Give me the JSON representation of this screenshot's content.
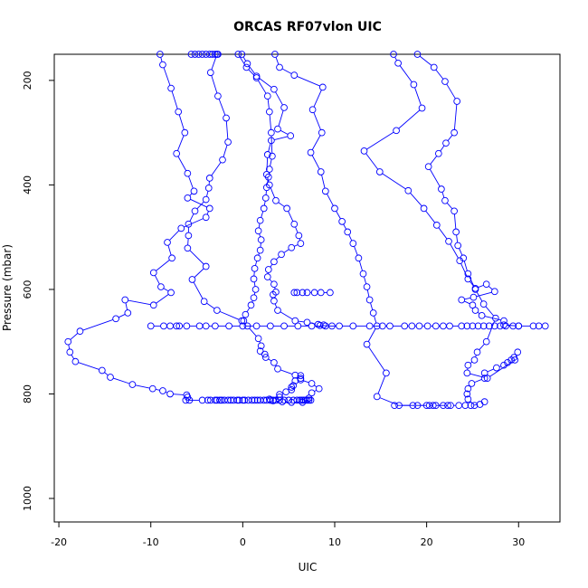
{
  "chart_data": {
    "type": "line",
    "title": "ORCAS RF07vlon UIC",
    "xlabel": "UIC",
    "ylabel": "Pressure (mbar)",
    "xlim": [
      -20.5,
      34.5
    ],
    "ylim": [
      1045,
      150
    ],
    "y_inverted": true,
    "x_ticks": [
      -20,
      -10,
      0,
      10,
      20,
      30
    ],
    "x_tick_labels": [
      "-20",
      "-10",
      "0",
      "10",
      "20",
      "30"
    ],
    "y_ticks": [
      200,
      400,
      600,
      800,
      1000
    ],
    "y_tick_labels": [
      "200",
      "400",
      "600",
      "800",
      "1000"
    ],
    "grid": false,
    "legend": "none",
    "color": "#0000ff",
    "marker": "open-circle",
    "series": [
      {
        "x": [
          -9,
          -8.7,
          -7.8,
          -7,
          -6.3,
          -7.2,
          -6,
          -5.3,
          -6,
          -3.6,
          -4,
          -6.7,
          -8.2,
          -7.7,
          -9.7,
          -8.9,
          -7.8,
          -9.7,
          -12.8,
          -12.5,
          -13.8,
          -17.7,
          -19,
          -18.8,
          -18.2,
          -15.3,
          -14.4,
          -12,
          -9.8,
          -8.7,
          -7.9,
          -6.1,
          -6,
          -5.8
        ],
        "y": [
          150,
          170,
          215,
          260,
          300,
          340,
          378,
          412,
          425,
          445,
          462,
          483,
          510,
          540,
          568,
          595,
          606,
          630,
          620,
          645,
          656,
          680,
          700,
          720,
          738,
          755,
          768,
          782,
          790,
          794,
          800,
          802,
          806,
          812
        ]
      },
      {
        "x": [
          -2.8,
          -3.5,
          -2.7,
          -1.8,
          -1.6,
          -2.2,
          -3.6,
          -3.7,
          -4,
          -5.2,
          -5.9,
          -5.9,
          -6,
          -4,
          -5.5,
          -4.2,
          -2.8,
          -0.1,
          0.5,
          1.7,
          2,
          1.9,
          2.4,
          2.5,
          3.4,
          3.8,
          5.7,
          6.3,
          7.5,
          8.3,
          7.5,
          7.2,
          7.4,
          6.5,
          5.3,
          4.3,
          3.3,
          3,
          2.9,
          4,
          4,
          4.7,
          5.3,
          5.3,
          5.5,
          5.7,
          6.3,
          6.3
        ],
        "y": [
          150,
          185,
          230,
          272,
          318,
          352,
          387,
          406,
          428,
          450,
          475,
          497,
          521,
          556,
          581,
          623,
          640,
          660,
          670,
          694,
          708,
          718,
          724,
          730,
          740,
          752,
          764,
          773,
          780,
          790,
          798,
          808,
          812,
          816,
          816,
          815,
          813,
          812,
          810,
          806,
          801,
          796,
          792,
          787,
          784,
          775,
          770,
          765
        ]
      },
      {
        "x": [
          -0.5,
          0.4,
          1.5,
          2.7,
          2.9,
          3.1,
          3.2,
          2.9,
          2.8,
          2.6,
          2.5,
          2.3,
          1.9,
          1.7,
          2,
          1.9,
          1.6,
          1.3,
          1.2,
          1.4,
          1.2,
          0.9,
          0.3,
          0.1
        ],
        "y": [
          150,
          175,
          195,
          230,
          260,
          300,
          345,
          370,
          385,
          405,
          425,
          445,
          468,
          488,
          505,
          525,
          540,
          560,
          580,
          600,
          616,
          630,
          648,
          660
        ]
      },
      {
        "x": [
          -0.1,
          0.5,
          1.5,
          3.4,
          4.5,
          3.8,
          5.2,
          3.1,
          2.7,
          2.6,
          2.9,
          3.6,
          4.8,
          5.6,
          6.1,
          6.3,
          5.3,
          4.2,
          3.4,
          2.8,
          2.7,
          3.4,
          3.6,
          3.3,
          3.4,
          3.8,
          5.7,
          7,
          8.2,
          8.8,
          8.4,
          9.7
        ],
        "y": [
          150,
          168,
          192,
          217,
          252,
          293,
          306,
          315,
          342,
          380,
          400,
          430,
          445,
          475,
          497,
          512,
          520,
          533,
          547,
          562,
          576,
          590,
          605,
          610,
          622,
          640,
          660,
          663,
          667,
          668,
          669,
          670
        ]
      },
      {
        "x": [
          3.5,
          4,
          5.6,
          8.7,
          7.6,
          8.6,
          7.4,
          8.5,
          9,
          10,
          10.8,
          11.4,
          12,
          12.6,
          13.1,
          13.5,
          13.8,
          14.2,
          14.6,
          13.5,
          15.6,
          14.6,
          17,
          19,
          20,
          21,
          22.3
        ],
        "y": [
          150,
          175,
          190,
          213,
          256,
          300,
          338,
          375,
          412,
          445,
          470,
          490,
          512,
          540,
          570,
          595,
          620,
          645,
          670,
          705,
          760,
          805,
          822,
          822,
          822,
          822,
          822
        ]
      },
      {
        "x": [
          16.4,
          16.9,
          18.6,
          19.5,
          16.7,
          13.2,
          14.9,
          18,
          19.7,
          21.1,
          22.4,
          23.6,
          24.5,
          25.3,
          26.5,
          27.4,
          25.1,
          23.8,
          25,
          25.3,
          26,
          28.4,
          28.4,
          30
        ],
        "y": [
          150,
          167,
          208,
          253,
          296,
          335,
          375,
          411,
          445,
          477,
          508,
          545,
          580,
          598,
          590,
          604,
          615,
          620,
          630,
          640,
          650,
          660,
          668,
          670
        ]
      },
      {
        "x": [
          19,
          20.8,
          22,
          23.3,
          23,
          22.1,
          21.3,
          20.2,
          21.6,
          22,
          23,
          23.2,
          23.4,
          24,
          24.5,
          25.3,
          26.2,
          27.5,
          26.5,
          25.5,
          25.2,
          24.5,
          24.4,
          26.6,
          29.6,
          29.9
        ],
        "y": [
          150,
          175,
          202,
          240,
          300,
          320,
          340,
          365,
          408,
          430,
          450,
          490,
          516,
          540,
          570,
          600,
          628,
          655,
          700,
          720,
          735,
          745,
          760,
          770,
          735,
          720
        ]
      },
      {
        "x": [
          25.2,
          24.5,
          24.4,
          24.5,
          24.9,
          26.3,
          26.3,
          27.6,
          28.4,
          28.8,
          29.2,
          29.5
        ],
        "y": [
          822,
          810,
          800,
          790,
          780,
          770,
          760,
          750,
          745,
          740,
          735,
          730
        ]
      },
      {
        "x": [
          -6.2,
          -4.4,
          -3.8,
          -3.5,
          -3,
          -2.8,
          -2.5,
          -2.3,
          -2,
          -1.6,
          -1.3,
          -1,
          -0.6,
          -0.4,
          0,
          0.2,
          0.6,
          1,
          1.3,
          1.6,
          1.9,
          2.3,
          2.6,
          3,
          3.3,
          3.6,
          4,
          4.5,
          5,
          5.5,
          5.9,
          6.2,
          6.4,
          6.6,
          6.8,
          7,
          7.2
        ],
        "y": [
          812,
          812,
          812,
          812,
          812,
          812,
          812,
          812,
          812,
          812,
          812,
          812,
          812,
          812,
          812,
          812,
          812,
          812,
          812,
          812,
          812,
          812,
          812,
          812,
          812,
          812,
          812,
          812,
          812,
          812,
          812,
          812,
          812,
          812,
          812,
          812,
          812
        ]
      },
      {
        "x": [
          -10,
          -8.6,
          -7.9,
          -7.2,
          -6.9,
          -6.1,
          -4.7,
          -4,
          -3,
          -1.5,
          0,
          1.5,
          3,
          4.5,
          6,
          7.5,
          9,
          10.5,
          12,
          13.8,
          15.2,
          16,
          17.6,
          18.4,
          19.2,
          20.1,
          21,
          21.8,
          22.5,
          23.8,
          24.4,
          25,
          25.6,
          26.2,
          26.8,
          27.4,
          28,
          28.6,
          29.4,
          30,
          31.6,
          32.2,
          32.9
        ],
        "y": [
          670,
          670,
          670,
          670,
          670,
          670,
          670,
          670,
          670,
          670,
          670,
          670,
          670,
          670,
          670,
          670,
          670,
          670,
          670,
          670,
          670,
          670,
          670,
          670,
          670,
          670,
          670,
          670,
          670,
          670,
          670,
          670,
          670,
          670,
          670,
          670,
          670,
          670,
          670,
          670,
          670,
          670,
          670
        ]
      },
      {
        "x": [
          -5.6,
          -5.2,
          -4.8,
          -4.4,
          -4,
          -3.6,
          -3.3,
          -3,
          -2.7
        ],
        "y": [
          150,
          150,
          150,
          150,
          150,
          150,
          150,
          150,
          150
        ]
      },
      {
        "x": [
          5.6,
          5.9,
          6.5,
          7,
          7.8,
          8.5,
          9.5
        ],
        "y": [
          606,
          606,
          606,
          606,
          606,
          606,
          606
        ]
      },
      {
        "x": [
          16.5,
          18.5,
          20.3,
          20.7,
          21.8,
          22.6,
          23.5,
          24.2,
          24.8,
          25.8,
          26.3
        ],
        "y": [
          822,
          822,
          822,
          822,
          822,
          822,
          822,
          822,
          822,
          820,
          815
        ]
      }
    ]
  }
}
